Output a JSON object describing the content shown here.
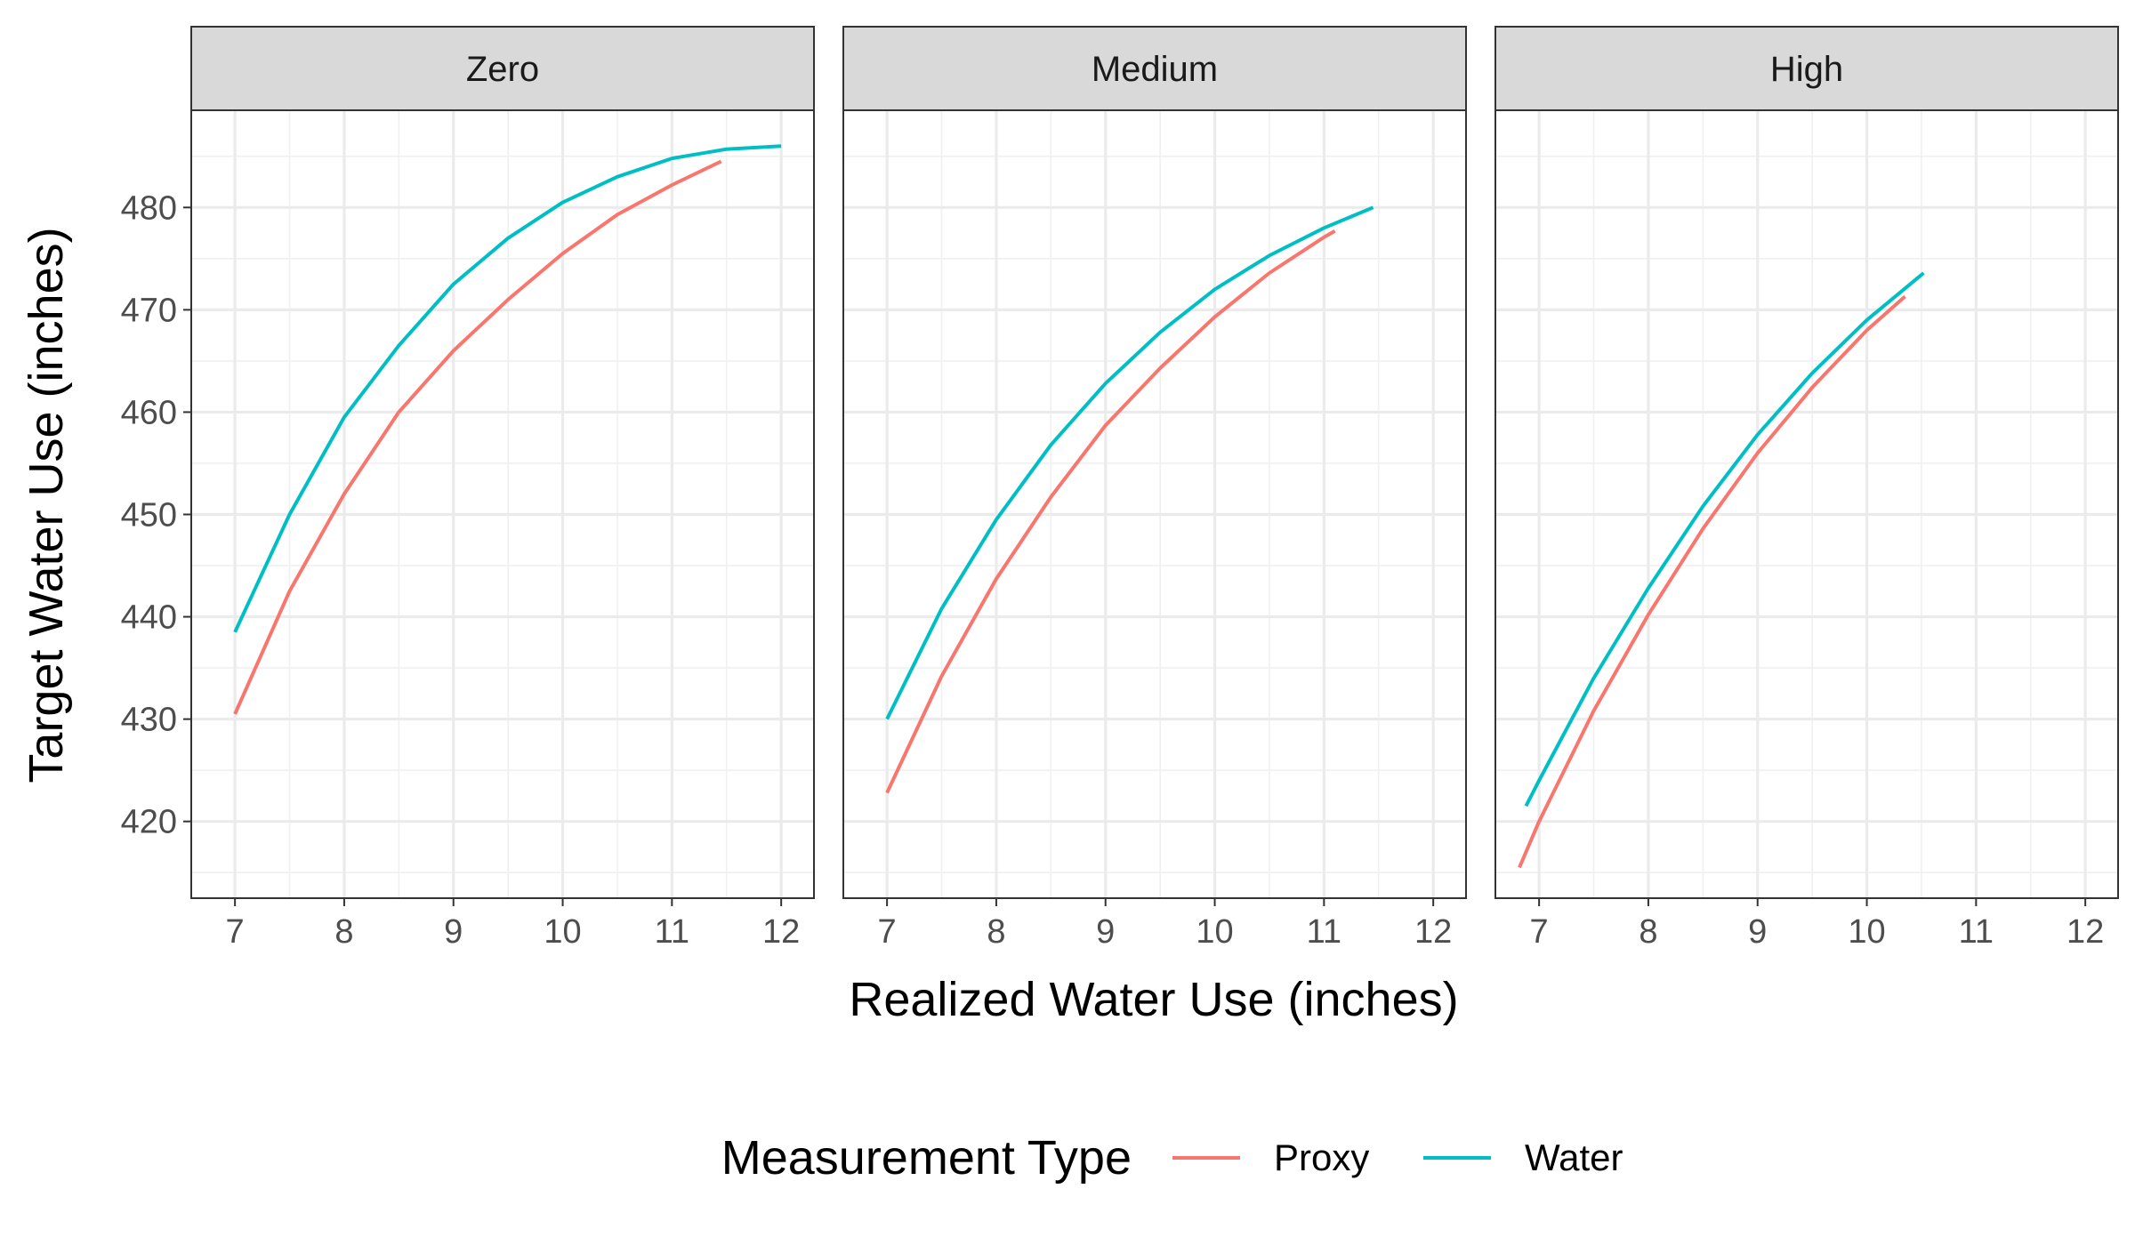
{
  "chart_data": {
    "type": "line",
    "xlabel": "Realized Water Use (inches)",
    "ylabel": "Target Water Use (inches)",
    "xlim": [
      6.6,
      12.3
    ],
    "ylim": [
      412.5,
      489.5
    ],
    "x_ticks": [
      7,
      8,
      9,
      10,
      11,
      12
    ],
    "y_ticks": [
      420,
      430,
      440,
      450,
      460,
      470,
      480
    ],
    "grid": true,
    "legend": {
      "title": "Measurement Type",
      "position": "bottom",
      "entries": [
        {
          "label": "Proxy",
          "color": "#F8766D"
        },
        {
          "label": "Water",
          "color": "#00BFC4"
        }
      ]
    },
    "panels": [
      {
        "title": "Zero",
        "series": [
          {
            "name": "Proxy",
            "x": [
              7,
              7.5,
              8,
              8.5,
              9,
              9.5,
              10,
              10.5,
              11,
              11.45
            ],
            "y": [
              430.5,
              442.5,
              452,
              460,
              466,
              471,
              475.5,
              479.3,
              482.2,
              484.5
            ]
          },
          {
            "name": "Water",
            "x": [
              7,
              7.5,
              8,
              8.5,
              9,
              9.5,
              10,
              10.5,
              11,
              11.5,
              12
            ],
            "y": [
              438.5,
              450,
              459.5,
              466.5,
              472.5,
              477,
              480.5,
              483,
              484.8,
              485.7,
              486
            ]
          }
        ]
      },
      {
        "title": "Medium",
        "series": [
          {
            "name": "Proxy",
            "x": [
              7,
              7.5,
              8,
              8.5,
              9,
              9.5,
              10,
              10.5,
              11,
              11.1
            ],
            "y": [
              422.8,
              434.2,
              443.7,
              451.7,
              458.7,
              464.3,
              469.3,
              473.6,
              477.1,
              477.7
            ]
          },
          {
            "name": "Water",
            "x": [
              7,
              7.5,
              8,
              8.5,
              9,
              9.5,
              10,
              10.5,
              11,
              11.45
            ],
            "y": [
              430,
              440.8,
              449.5,
              456.8,
              462.8,
              467.8,
              472,
              475.3,
              478,
              480
            ]
          }
        ]
      },
      {
        "title": "High",
        "series": [
          {
            "name": "Proxy",
            "x": [
              6.82,
              7,
              7.5,
              8,
              8.5,
              9,
              9.5,
              10,
              10.35
            ],
            "y": [
              415.5,
              420,
              430.8,
              440.2,
              448.6,
              456,
              462.4,
              468,
              471.3
            ]
          },
          {
            "name": "Water",
            "x": [
              6.88,
              7,
              7.5,
              8,
              8.5,
              9,
              9.5,
              10,
              10.52
            ],
            "y": [
              421.5,
              424,
              434,
              442.8,
              450.8,
              457.8,
              463.8,
              469,
              473.6
            ]
          }
        ]
      }
    ]
  }
}
